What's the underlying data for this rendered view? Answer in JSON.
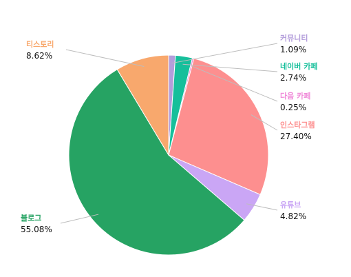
{
  "chart_data": {
    "type": "pie",
    "slices": [
      {
        "label": "커뮤니티",
        "value": 1.09,
        "value_text": "1.09%",
        "color": "#b39ddb"
      },
      {
        "label": "네이버 카페",
        "value": 2.74,
        "value_text": "2.74%",
        "color": "#16bf9b"
      },
      {
        "label": "다음 카페",
        "value": 0.25,
        "value_text": "0.25%",
        "color": "#f08bd9"
      },
      {
        "label": "인스타그램",
        "value": 27.4,
        "value_text": "27.40%",
        "color": "#fd8f8f"
      },
      {
        "label": "유튜브",
        "value": 4.82,
        "value_text": "4.82%",
        "color": "#caa6f5"
      },
      {
        "label": "블로그",
        "value": 55.08,
        "value_text": "55.08%",
        "color": "#26a363"
      },
      {
        "label": "티스토리",
        "value": 8.62,
        "value_text": "8.62%",
        "color": "#f8a86d"
      }
    ],
    "start_angle_deg": 0,
    "direction": "clockwise"
  }
}
